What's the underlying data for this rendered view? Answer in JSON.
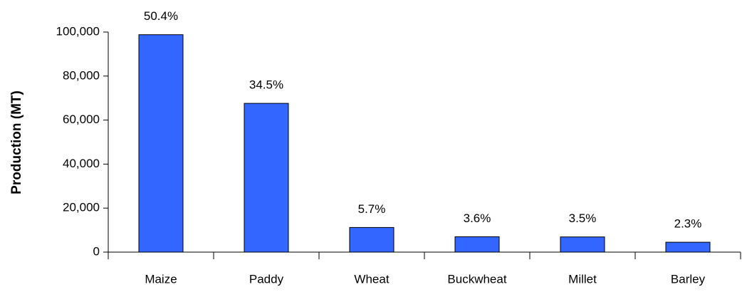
{
  "chart_data": {
    "type": "bar",
    "y_label": "Production (MT)",
    "categories": [
      "Maize",
      "Paddy",
      "Wheat",
      "Buckwheat",
      "Millet",
      "Barley"
    ],
    "values": [
      98800,
      67600,
      11200,
      7000,
      6900,
      4500
    ],
    "annotations": [
      "50.4%",
      "34.5%",
      "5.7%",
      "3.6%",
      "3.5%",
      "2.3%"
    ],
    "color": "#3366ff",
    "ylim": [
      0,
      100000
    ],
    "yticks": [
      0,
      {
        "value": 20000,
        "label": "20,000"
      },
      {
        "value": 40000,
        "label": "40,000"
      },
      {
        "value": 60000,
        "label": "60,000"
      },
      {
        "value": 80000,
        "label": "80,000"
      },
      {
        "value": 100000,
        "label": "100,000"
      }
    ],
    "grid": false
  }
}
